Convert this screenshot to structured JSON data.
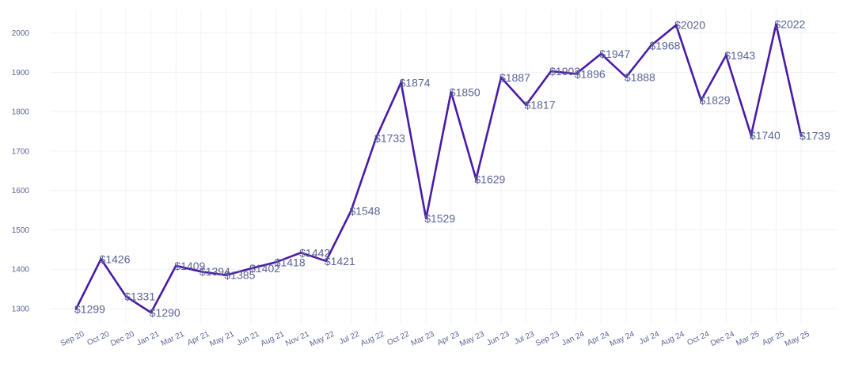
{
  "chart_data": {
    "type": "line",
    "title": "",
    "xlabel": "",
    "ylabel": "",
    "ylim": [
      1250,
      2060
    ],
    "yticks": [
      1300,
      1400,
      1500,
      1600,
      1700,
      1800,
      1900,
      2000
    ],
    "grid": true,
    "line_color": "#4a1aa6",
    "label_color": "#5b6396",
    "tick_color": "#5b6396",
    "categories": [
      "Sep 20",
      "Oct 20",
      "Dec 20",
      "Jan 21",
      "Mar 21",
      "Apr 21",
      "May 21",
      "Jun 21",
      "Aug 21",
      "Nov 21",
      "May 22",
      "Jul 22",
      "Aug 22",
      "Oct 22",
      "Mar 23",
      "Apr 23",
      "May 23",
      "Jun 23",
      "Jul 23",
      "Sep 23",
      "Jan 24",
      "Apr 24",
      "May 24",
      "Jul 24",
      "Aug 24",
      "Oct 24",
      "Dec 24",
      "Mar 25",
      "Apr 25",
      "May 25"
    ],
    "values": [
      1299,
      1426,
      1331,
      1290,
      1409,
      1394,
      1385,
      1402,
      1418,
      1442,
      1421,
      1548,
      1733,
      1874,
      1529,
      1850,
      1629,
      1887,
      1817,
      1903,
      1896,
      1947,
      1888,
      1968,
      2020,
      1829,
      1943,
      1740,
      2022,
      1739
    ],
    "data_labels": [
      "$1299",
      "$1426",
      "$1331",
      "$1290",
      "$1409",
      "$1394",
      "$1385",
      "$1402",
      "$1418",
      "$1442",
      "$1421",
      "$1548",
      "$1733",
      "$1874",
      "$1529",
      "$1850",
      "$1629",
      "$1887",
      "$1817",
      "$1903",
      "$1896",
      "$1947",
      "$1888",
      "$1968",
      "$2020",
      "$1829",
      "$1943",
      "$1740",
      "$2022",
      "$1739"
    ]
  }
}
